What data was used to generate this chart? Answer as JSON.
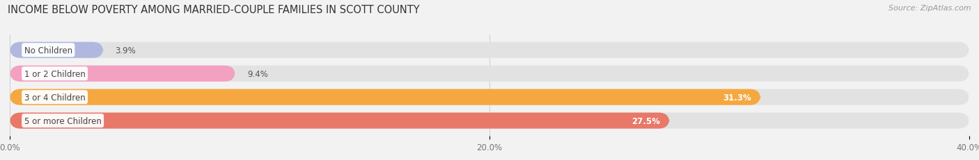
{
  "title": "INCOME BELOW POVERTY AMONG MARRIED-COUPLE FAMILIES IN SCOTT COUNTY",
  "source_text": "Source: ZipAtlas.com",
  "categories": [
    "No Children",
    "1 or 2 Children",
    "3 or 4 Children",
    "5 or more Children"
  ],
  "values": [
    3.9,
    9.4,
    31.3,
    27.5
  ],
  "bar_colors": [
    "#b0b8e0",
    "#f4a0c0",
    "#f5a840",
    "#e87868"
  ],
  "xlim": [
    0,
    40
  ],
  "xtick_values": [
    0.0,
    20.0,
    40.0
  ],
  "xtick_labels": [
    "0.0%",
    "20.0%",
    "40.0%"
  ],
  "background_color": "#f2f2f2",
  "bar_background_color": "#e2e2e2",
  "title_fontsize": 10.5,
  "source_fontsize": 8,
  "bar_height": 0.68,
  "label_fontsize": 8.5,
  "value_threshold": 15
}
